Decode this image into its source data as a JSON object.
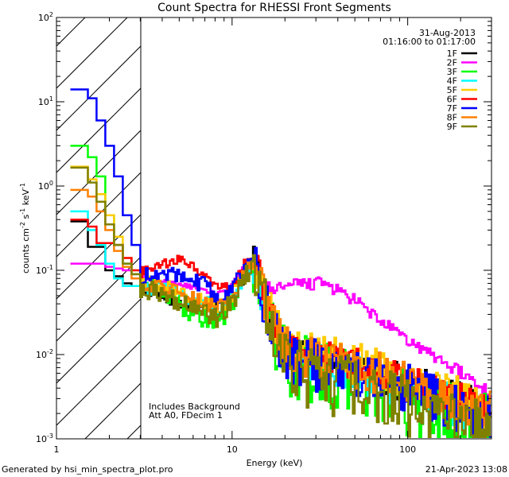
{
  "chart_data": {
    "type": "line",
    "title": "Count Spectra for RHESSI Front Segments",
    "xlabel": "Energy (keV)",
    "ylabel": "counts cm^-2 s^-1 keV^-1",
    "xscale": "log",
    "yscale": "log",
    "xlim": [
      1,
      300
    ],
    "ylim": [
      0.001,
      100
    ],
    "x_ticks": [
      {
        "value": 1,
        "label": "1"
      },
      {
        "value": 10,
        "label": "10"
      },
      {
        "value": 100,
        "label": "100"
      }
    ],
    "y_ticks": [
      {
        "value": 0.001,
        "base": "10",
        "exp": "-3"
      },
      {
        "value": 0.01,
        "base": "10",
        "exp": "-2"
      },
      {
        "value": 0.1,
        "base": "10",
        "exp": "-1"
      },
      {
        "value": 1,
        "base": "10",
        "exp": "0"
      },
      {
        "value": 10,
        "base": "10",
        "exp": "1"
      },
      {
        "value": 100,
        "base": "10",
        "exp": "2"
      }
    ],
    "excluded_region": {
      "from": 1,
      "to": 3
    },
    "legend_position": "top-right",
    "series": [
      {
        "name": "1F",
        "color": "#000000",
        "low": [
          0.38,
          0.38,
          0.19,
          0.19,
          0.1,
          0.085,
          0.07,
          0.065
        ],
        "base": [
          0.058,
          0.055,
          0.05,
          0.046,
          0.042,
          0.04,
          0.038,
          0.036,
          0.034,
          0.035,
          0.05,
          0.085,
          0.12,
          0.052,
          0.022,
          0.012,
          0.0095,
          0.009,
          0.0085,
          0.008,
          0.0075,
          0.0072,
          0.0068,
          0.0065,
          0.006,
          0.0056,
          0.0053,
          0.005,
          0.0046,
          0.0043,
          0.004,
          0.0037,
          0.0034,
          0.0031,
          0.0028,
          0.0025,
          0.0022,
          0.002
        ],
        "amp": 0.18
      },
      {
        "name": "2F",
        "color": "#ff00ff",
        "low": [
          0.12,
          0.12,
          0.12,
          0.12,
          0.11,
          0.105,
          0.1,
          0.09
        ],
        "base": [
          0.08,
          0.078,
          0.075,
          0.072,
          0.07,
          0.065,
          0.06,
          0.056,
          0.052,
          0.058,
          0.075,
          0.11,
          0.12,
          0.07,
          0.06,
          0.062,
          0.065,
          0.068,
          0.07,
          0.07,
          0.065,
          0.055,
          0.048,
          0.04,
          0.033,
          0.027,
          0.022,
          0.018,
          0.015,
          0.013,
          0.011,
          0.0095,
          0.0082,
          0.007,
          0.0058,
          0.0048,
          0.004,
          0.0034
        ],
        "amp": 0.06
      },
      {
        "name": "3F",
        "color": "#00ff00",
        "low": [
          3.0,
          3.0,
          2.2,
          1.3,
          0.45,
          0.2,
          0.12,
          0.09
        ],
        "base": [
          0.07,
          0.062,
          0.058,
          0.05,
          0.042,
          0.035,
          0.03,
          0.027,
          0.025,
          0.03,
          0.045,
          0.085,
          0.11,
          0.048,
          0.018,
          0.0095,
          0.0075,
          0.007,
          0.0065,
          0.006,
          0.0055,
          0.005,
          0.0047,
          0.0043,
          0.004,
          0.0036,
          0.0033,
          0.003,
          0.0027,
          0.0025,
          0.0023,
          0.0021,
          0.002,
          0.0018,
          0.0017,
          0.0016,
          0.0015,
          0.0014
        ],
        "amp": 0.3
      },
      {
        "name": "4F",
        "color": "#00ffff",
        "low": [
          0.5,
          0.5,
          0.3,
          0.2,
          0.12,
          0.08,
          0.065,
          0.065
        ],
        "base": [
          0.065,
          0.062,
          0.06,
          0.057,
          0.052,
          0.048,
          0.044,
          0.04,
          0.036,
          0.038,
          0.052,
          0.09,
          0.1,
          0.05,
          0.02,
          0.011,
          0.009,
          0.0085,
          0.008,
          0.0075,
          0.007,
          0.0066,
          0.0062,
          0.0058,
          0.0054,
          0.005,
          0.0046,
          0.0042,
          0.0039,
          0.0036,
          0.0033,
          0.003,
          0.0027,
          0.0025,
          0.0023,
          0.0021,
          0.0019,
          0.0017
        ],
        "amp": 0.2
      },
      {
        "name": "5F",
        "color": "#ffcc00",
        "low": [
          1.7,
          1.7,
          1.2,
          0.8,
          0.45,
          0.25,
          0.14,
          0.1
        ],
        "base": [
          0.075,
          0.07,
          0.066,
          0.062,
          0.058,
          0.05,
          0.045,
          0.04,
          0.036,
          0.04,
          0.06,
          0.1,
          0.13,
          0.06,
          0.025,
          0.014,
          0.011,
          0.0105,
          0.01,
          0.0095,
          0.009,
          0.0085,
          0.008,
          0.0075,
          0.007,
          0.0065,
          0.006,
          0.0055,
          0.005,
          0.0046,
          0.0042,
          0.0038,
          0.0035,
          0.0032,
          0.0029,
          0.0026,
          0.0024,
          0.0022
        ],
        "amp": 0.2
      },
      {
        "name": "6F",
        "color": "#ff0000",
        "low": [
          0.4,
          0.4,
          0.33,
          0.21,
          0.21,
          0.2,
          0.14,
          0.1
        ],
        "base": [
          0.095,
          0.1,
          0.11,
          0.12,
          0.13,
          0.125,
          0.1,
          0.08,
          0.062,
          0.06,
          0.075,
          0.12,
          0.14,
          0.06,
          0.026,
          0.014,
          0.011,
          0.0105,
          0.01,
          0.0095,
          0.009,
          0.0085,
          0.008,
          0.0075,
          0.007,
          0.0065,
          0.006,
          0.0055,
          0.005,
          0.0046,
          0.0042,
          0.0038,
          0.0035,
          0.0032,
          0.0029,
          0.0026,
          0.0024,
          0.0022
        ],
        "amp": 0.15
      },
      {
        "name": "7F",
        "color": "#0000ff",
        "low": [
          14,
          14,
          11,
          6,
          3,
          1.3,
          0.45,
          0.2
        ],
        "base": [
          0.085,
          0.082,
          0.085,
          0.09,
          0.095,
          0.088,
          0.075,
          0.062,
          0.05,
          0.05,
          0.065,
          0.11,
          0.12,
          0.05,
          0.02,
          0.011,
          0.0085,
          0.008,
          0.0078,
          0.0075,
          0.0072,
          0.0068,
          0.0064,
          0.006,
          0.0056,
          0.0052,
          0.0048,
          0.0044,
          0.004,
          0.0037,
          0.0034,
          0.0031,
          0.0028,
          0.0026,
          0.0024,
          0.0022,
          0.002,
          0.0018
        ],
        "amp": 0.25
      },
      {
        "name": "8F",
        "color": "#ff8000",
        "low": [
          0.9,
          0.9,
          0.75,
          0.5,
          0.3,
          0.17,
          0.11,
          0.08
        ],
        "base": [
          0.07,
          0.068,
          0.065,
          0.062,
          0.058,
          0.052,
          0.046,
          0.041,
          0.037,
          0.04,
          0.055,
          0.095,
          0.12,
          0.055,
          0.023,
          0.013,
          0.0105,
          0.01,
          0.0095,
          0.009,
          0.0085,
          0.008,
          0.0075,
          0.007,
          0.0065,
          0.006,
          0.0056,
          0.0052,
          0.0048,
          0.0044,
          0.004,
          0.0037,
          0.0034,
          0.0031,
          0.0028,
          0.0026,
          0.0024,
          0.0022
        ],
        "amp": 0.2
      },
      {
        "name": "9F",
        "color": "#808000",
        "low": [
          1.65,
          1.65,
          1.1,
          0.65,
          0.35,
          0.2,
          0.12,
          0.09
        ],
        "base": [
          0.065,
          0.06,
          0.055,
          0.05,
          0.045,
          0.038,
          0.034,
          0.031,
          0.028,
          0.032,
          0.05,
          0.09,
          0.11,
          0.045,
          0.016,
          0.0085,
          0.0065,
          0.006,
          0.0055,
          0.005,
          0.0046,
          0.0043,
          0.004,
          0.0037,
          0.0034,
          0.0031,
          0.0029,
          0.0027,
          0.0025,
          0.0023,
          0.0021,
          0.002,
          0.0018,
          0.0017,
          0.0016,
          0.0015,
          0.0014,
          0.0013
        ],
        "amp": 0.3
      }
    ]
  },
  "annotations": {
    "date": "31-Aug-2013",
    "time_range": "01:16:00 to 01:17:00",
    "background_note": "Includes Background",
    "attenuator_note": "Att A0, FDecim 1"
  },
  "footer": {
    "generated_by": "Generated by hsi_min_spectra_plot.pro",
    "timestamp": "21-Apr-2023 13:08"
  }
}
